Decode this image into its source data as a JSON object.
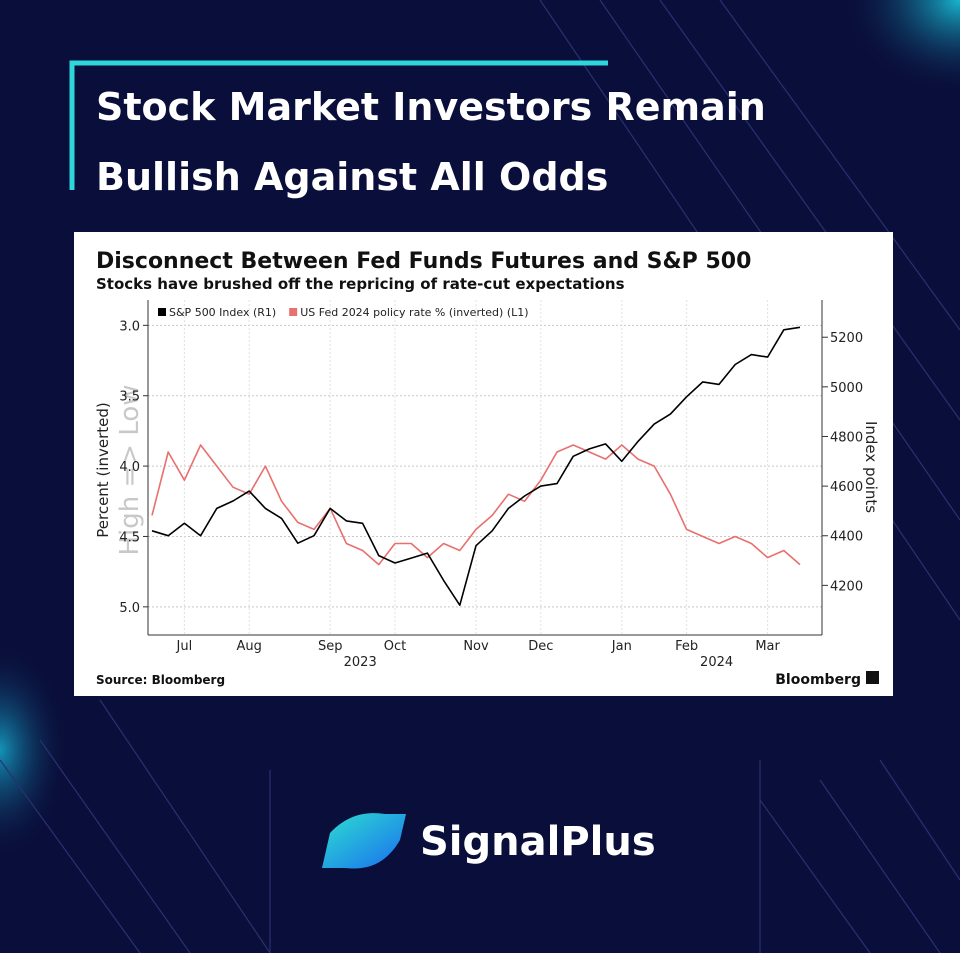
{
  "header": {
    "title_lines": [
      "Stock Market Investors Remain",
      "Bullish Against All Odds"
    ]
  },
  "chart_data": {
    "type": "line",
    "title": "Disconnect Between Fed Funds Futures and S&P 500",
    "subtitle": "Stocks have brushed off the repricing of rate-cut expectations",
    "y_label": "Percent (inverted)",
    "y2_label": "Index points",
    "annotation": "High => Low",
    "source": "Source: Bloomberg",
    "logo": "Bloomberg",
    "categories": [
      null,
      null,
      "Jul",
      null,
      null,
      null,
      "Aug",
      null,
      null,
      null,
      null,
      "Sep",
      null,
      null,
      null,
      "Oct",
      null,
      null,
      null,
      null,
      "Nov",
      null,
      null,
      null,
      "Dec",
      null,
      null,
      null,
      null,
      "Jan",
      null,
      null,
      null,
      "Feb",
      null,
      null,
      null,
      null,
      "Mar",
      null,
      null
    ],
    "year_labels": [
      {
        "label": "2023",
        "under": "Sep"
      },
      {
        "label": "2024",
        "under": "Feb"
      }
    ],
    "series": [
      {
        "name": "S&P 500 Index (R1)",
        "color": "#000000",
        "axis": "y2",
        "values": [
          4420,
          4400,
          4450,
          4400,
          4510,
          4540,
          4580,
          4510,
          4470,
          4370,
          4400,
          4510,
          4460,
          4450,
          4320,
          4290,
          4310,
          4330,
          4220,
          4120,
          4360,
          4420,
          4510,
          4560,
          4600,
          4610,
          4720,
          4750,
          4770,
          4700,
          4780,
          4850,
          4890,
          4960,
          5020,
          5010,
          5090,
          5130,
          5120,
          5230,
          5240
        ]
      },
      {
        "name": "US Fed 2024 policy rate % (inverted) (L1)",
        "color": "#e8706e",
        "axis": "y",
        "values": [
          4.35,
          3.9,
          4.1,
          3.85,
          4.0,
          4.15,
          4.2,
          4.0,
          4.25,
          4.4,
          4.45,
          4.3,
          4.55,
          4.6,
          4.7,
          4.55,
          4.55,
          4.65,
          4.55,
          4.6,
          4.45,
          4.35,
          4.2,
          4.25,
          4.1,
          3.9,
          3.85,
          3.9,
          3.95,
          3.85,
          3.95,
          4.0,
          4.2,
          4.45,
          4.5,
          4.55,
          4.5,
          4.55,
          4.65,
          4.6,
          4.7
        ]
      }
    ],
    "ylim": [
      2.82,
      5.2
    ],
    "y_inverted": true,
    "yticks": [
      {
        "value": 3,
        "label": "3.0"
      },
      3.5,
      {
        "value": 4,
        "label": "4.0"
      },
      4.5,
      {
        "value": 5,
        "label": "5.0"
      }
    ],
    "y2lim": [
      4000,
      5350
    ],
    "y2ticks": [
      4200,
      4400,
      4600,
      4800,
      5000,
      5200
    ],
    "grid": true,
    "legend": "top-left"
  },
  "brand": {
    "name": "SignalPlus"
  }
}
